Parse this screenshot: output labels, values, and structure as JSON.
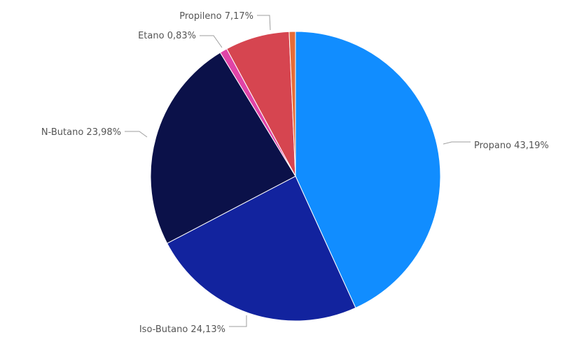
{
  "chart_data": {
    "type": "pie",
    "title": "",
    "start": "top",
    "direction": "clockwise",
    "slices": [
      {
        "label": "Propano 43,19%",
        "name": "Propano",
        "value": 43.19,
        "color": "#118dff"
      },
      {
        "label": "Iso-Butano 24,13%",
        "name": "Iso-Butano",
        "value": 24.13,
        "color": "#12239e"
      },
      {
        "label": "N-Butano 23,98%",
        "name": "N-Butano",
        "value": 23.98,
        "color": "#0b1149"
      },
      {
        "label": "Etano 0,83%",
        "name": "Etano",
        "value": 0.83,
        "color": "#e044a7"
      },
      {
        "label": "Propileno 7,17%",
        "name": "Propileno",
        "value": 7.17,
        "color": "#d64550"
      },
      {
        "label": "",
        "name": "",
        "value": 0.7,
        "color": "#e66c37"
      }
    ]
  }
}
